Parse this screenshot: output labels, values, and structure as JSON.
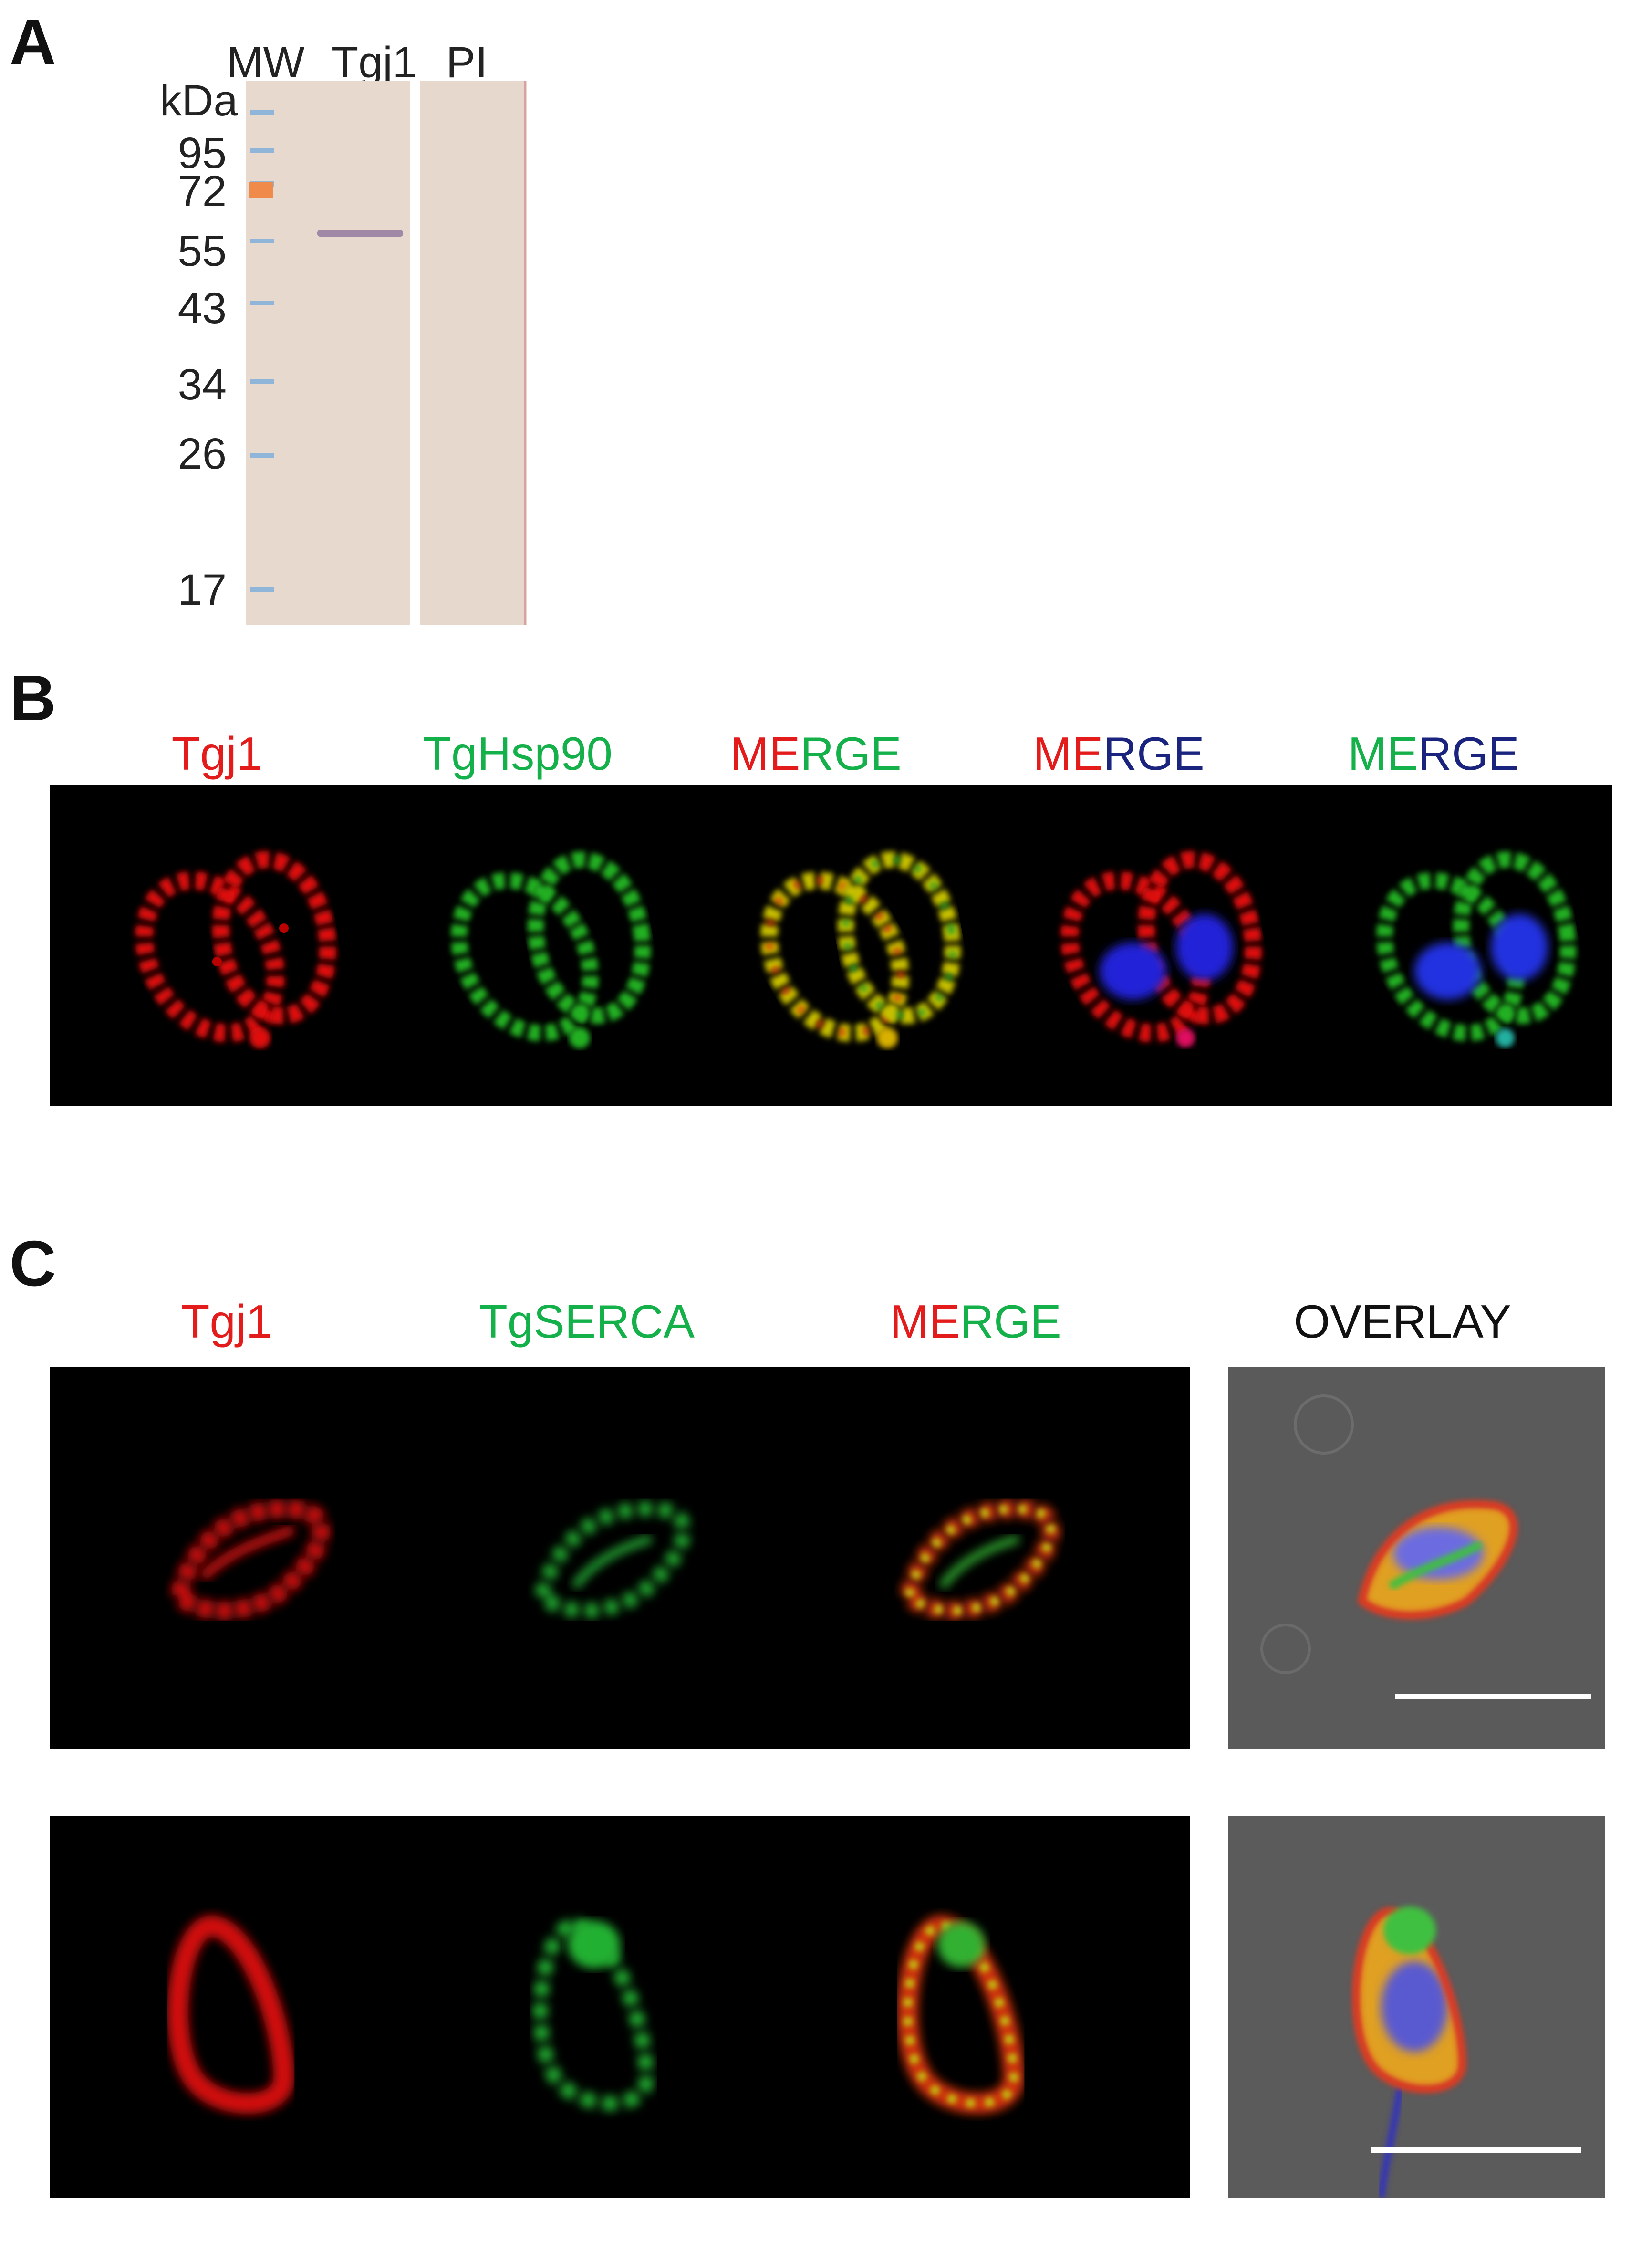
{
  "panel_a": {
    "letter": "A",
    "lanes": {
      "mw": "MW",
      "tgj1": "Tgj1",
      "pi": "PI"
    },
    "unit": "kDa",
    "markers": [
      "95",
      "72",
      "55",
      "43",
      "34",
      "26",
      "17"
    ]
  },
  "panel_b": {
    "letter": "B",
    "columns": {
      "c1": "Tgj1",
      "c2": "TgHsp90",
      "c3": {
        "a": "ME",
        "b": "RGE"
      },
      "c4": {
        "a": "ME",
        "b": "RGE"
      },
      "c5": {
        "a": "ME",
        "b": "RGE"
      }
    }
  },
  "panel_c": {
    "letter": "C",
    "columns": {
      "c1": "Tgj1",
      "c2": "TgSERCA",
      "c3": {
        "a": "ME",
        "b": "RGE"
      },
      "c4": "OVERLAY"
    }
  },
  "colors": {
    "red": "#e31b1b",
    "green": "#14b04a",
    "blue": "#1a237e",
    "microscopy_background": "#000000",
    "overlay_background": "#5b5b5b"
  }
}
